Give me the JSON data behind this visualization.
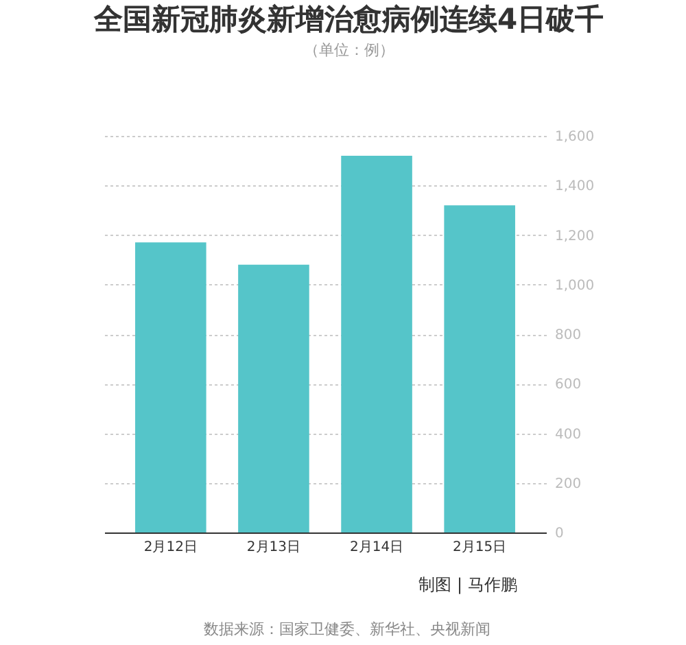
{
  "chart_data": {
    "type": "bar",
    "title": "全国新冠肺炎新增治愈病例连续4日破千",
    "subtitle": "（单位：例）",
    "categories": [
      "2月12日",
      "2月13日",
      "2月14日",
      "2月15日"
    ],
    "values": [
      1170,
      1080,
      1520,
      1320
    ],
    "color": "#55c5c9",
    "ylim": [
      0,
      1600
    ],
    "yticks": [
      0,
      200,
      400,
      600,
      800,
      {
        "value": 1000,
        "label": "1,000"
      },
      {
        "value": 1200,
        "label": "1,200"
      },
      {
        "value": 1400,
        "label": "1,400"
      },
      {
        "value": 1600,
        "label": "1,600"
      }
    ],
    "grid": "y",
    "annotations": [
      "制图 | 马作鹏",
      "数据来源：国家卫健委、新华社、央视新闻"
    ]
  }
}
